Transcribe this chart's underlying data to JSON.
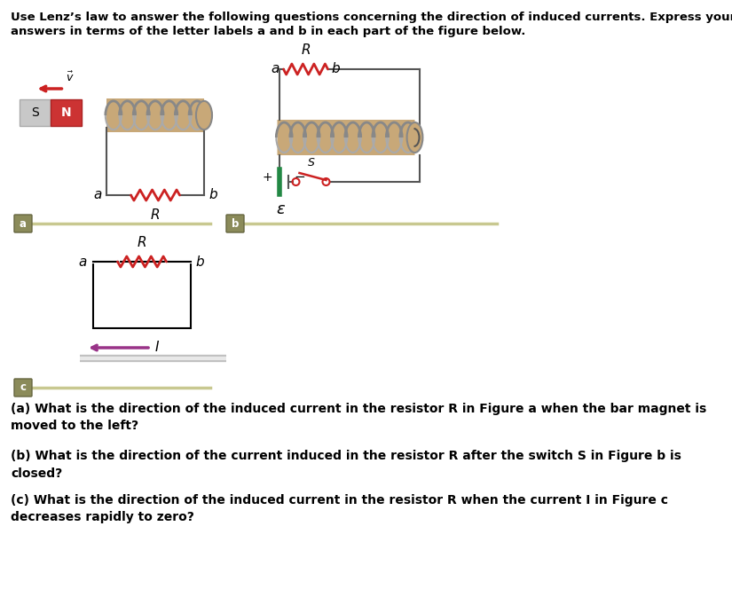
{
  "bg_color": "#ffffff",
  "text_color": "#000000",
  "coil_color": "#c8a878",
  "coil_line_color": "#aaaaaa",
  "resistor_color_a": "#cc2222",
  "resistor_color_b": "#cc2222",
  "resistor_color_c": "#cc2222",
  "magnet_s_color": "#cccccc",
  "magnet_n_color": "#cc3333",
  "arrow_v_color": "#cc2222",
  "switch_color": "#cc2222",
  "battery_color": "#228844",
  "section_line_color": "#c8c890",
  "section_box_color": "#8b8b5a",
  "wire_color": "#555555",
  "current_arrow_color": "#993388",
  "title1": "Use Lenz’s law to answer the following questions concerning the direction of induced currents. Express your",
  "title2": "answers in terms of the letter labels a and b in each part of the figure below.",
  "qa": "(a) What is the direction of the induced current in the resistor R in Figure a when the bar magnet is\nmoved to the left?",
  "qb": "(b) What is the direction of the current induced in the resistor R after the switch S in Figure b is\nclosed?",
  "qc": "(c) What is the direction of the induced current in the resistor R when the current I in Figure c\ndecreases rapidly to zero?"
}
